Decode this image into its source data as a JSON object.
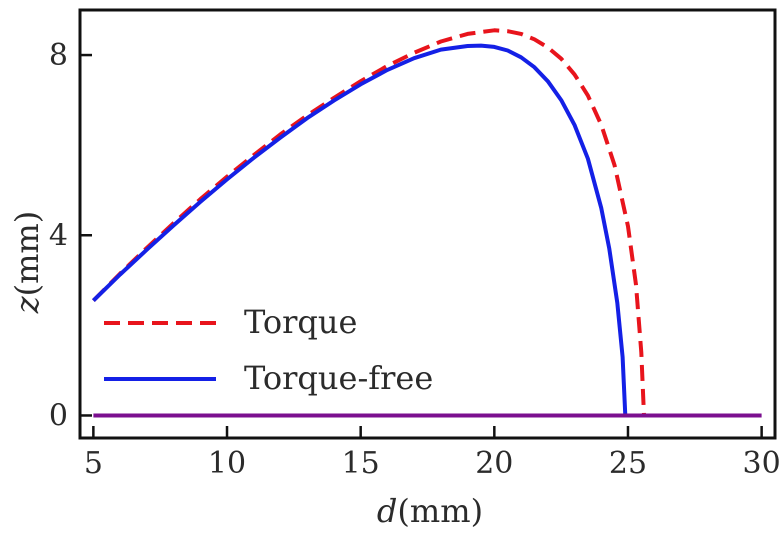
{
  "chart_data": {
    "type": "line",
    "xlabel": {
      "var": "d",
      "unit": "(mm)"
    },
    "ylabel": {
      "var": "z",
      "unit": "(mm)"
    },
    "xlim": [
      4.5,
      30.5
    ],
    "ylim": [
      -0.5,
      9.0
    ],
    "xticks": [
      "5",
      "10",
      "15",
      "20",
      "25",
      "30"
    ],
    "yticks": [
      "0",
      "4",
      "8"
    ],
    "grid": false,
    "legend_position": "lower-left",
    "series": [
      {
        "name": "Torque",
        "color": "#e8141c",
        "style": "dashed",
        "x": [
          5,
          6,
          7,
          8,
          9,
          10,
          11,
          12,
          13,
          14,
          15,
          16,
          17,
          18,
          19,
          20,
          20.5,
          21,
          21.5,
          22,
          22.5,
          23,
          23.5,
          24,
          24.5,
          25,
          25.3,
          25.5,
          25.6
        ],
        "y": [
          2.55,
          3.15,
          3.72,
          4.27,
          4.8,
          5.3,
          5.78,
          6.24,
          6.66,
          7.05,
          7.42,
          7.76,
          8.05,
          8.3,
          8.47,
          8.55,
          8.53,
          8.47,
          8.35,
          8.17,
          7.92,
          7.57,
          7.1,
          6.45,
          5.55,
          4.2,
          2.9,
          1.4,
          0.0
        ]
      },
      {
        "name": "Torque-free",
        "color": "#1420e6",
        "style": "solid",
        "x": [
          5,
          6,
          7,
          8,
          9,
          10,
          11,
          12,
          13,
          14,
          15,
          16,
          17,
          18,
          19,
          19.5,
          20,
          20.5,
          21,
          21.5,
          22,
          22.5,
          23,
          23.5,
          24,
          24.3,
          24.6,
          24.8,
          24.9
        ],
        "y": [
          2.55,
          3.13,
          3.68,
          4.22,
          4.74,
          5.24,
          5.72,
          6.17,
          6.6,
          6.99,
          7.35,
          7.67,
          7.93,
          8.12,
          8.2,
          8.21,
          8.18,
          8.1,
          7.95,
          7.73,
          7.42,
          7.0,
          6.45,
          5.7,
          4.6,
          3.7,
          2.5,
          1.3,
          0.0
        ]
      },
      {
        "name": "",
        "color": "#7b0f8f",
        "style": "solid",
        "x": [
          5,
          30
        ],
        "y": [
          0,
          0
        ]
      }
    ]
  }
}
